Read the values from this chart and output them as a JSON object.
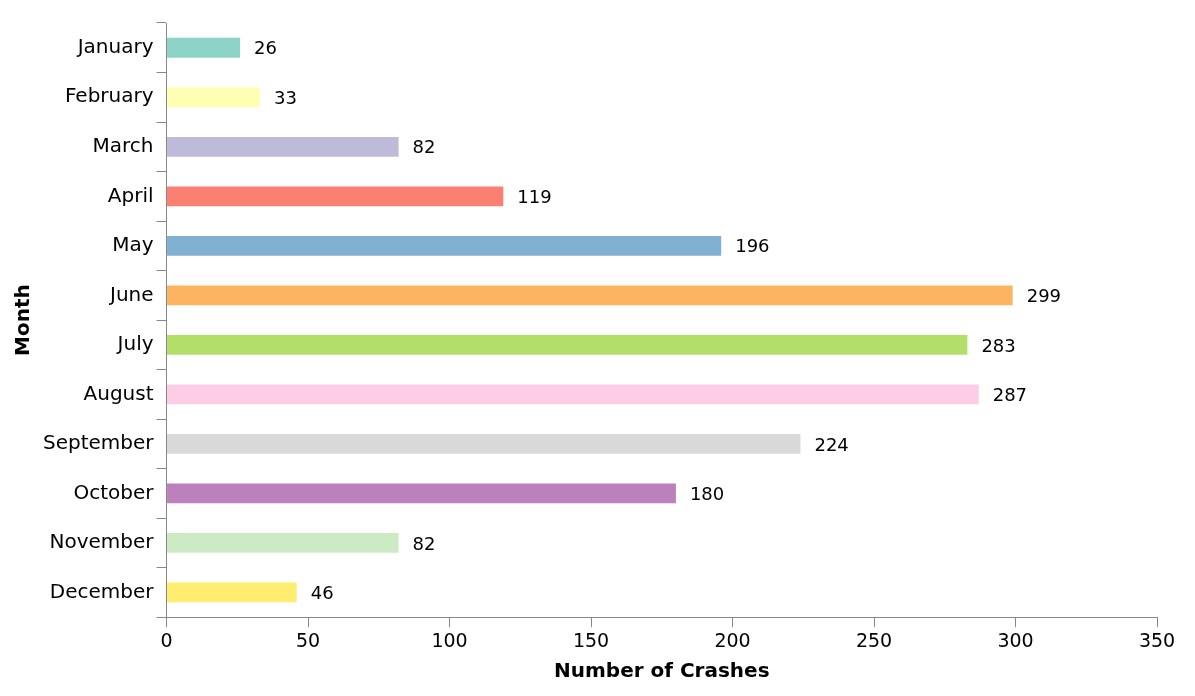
{
  "chart_data": {
    "type": "bar",
    "orientation": "horizontal",
    "xlabel": "Number of Crashes",
    "ylabel": "Month",
    "categories": [
      "January",
      "February",
      "March",
      "April",
      "May",
      "June",
      "July",
      "August",
      "September",
      "October",
      "November",
      "December"
    ],
    "values": [
      26,
      33,
      82,
      119,
      196,
      299,
      283,
      287,
      224,
      180,
      82,
      46
    ],
    "colors": [
      "#8dd3c7",
      "#ffffb3",
      "#bebada",
      "#fb8072",
      "#80b1d3",
      "#fdb462",
      "#b3de69",
      "#fccde5",
      "#d9d9d9",
      "#bc80bd",
      "#ccebc5",
      "#ffed6f"
    ],
    "xlim": [
      0,
      350
    ],
    "xticks": [
      0,
      50,
      100,
      150,
      200,
      250,
      300,
      350
    ],
    "data_labels": true,
    "grid": false,
    "legend": false
  }
}
